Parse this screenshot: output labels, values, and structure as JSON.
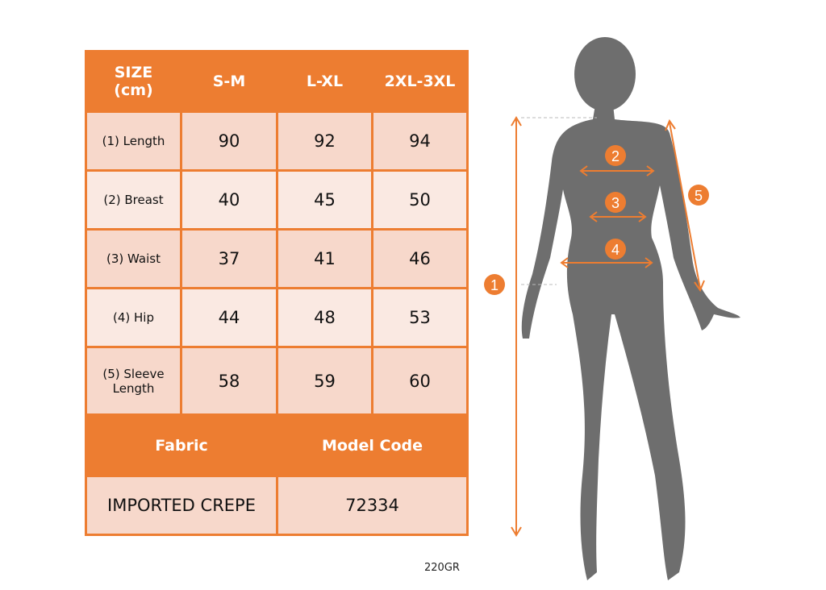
{
  "table": {
    "header": [
      "SIZE\n(cm)",
      "S-M",
      "L-XL",
      "2XL-3XL"
    ],
    "header_line1": "SIZE",
    "header_line2": "(cm)",
    "rows": [
      {
        "label": "(1) Length",
        "values": [
          "90",
          "92",
          "94"
        ]
      },
      {
        "label": "(2) Breast",
        "values": [
          "40",
          "45",
          "50"
        ]
      },
      {
        "label": "(3) Waist",
        "values": [
          "37",
          "41",
          "46"
        ]
      },
      {
        "label": "(4) Hip",
        "values": [
          "44",
          "48",
          "53"
        ]
      },
      {
        "label": "(5) Sleeve Length",
        "label_line1": "(5) Sleeve",
        "label_line2": "Length",
        "values": [
          "58",
          "59",
          "60"
        ]
      }
    ],
    "fabric_label": "Fabric",
    "model_code_label": "Model Code",
    "fabric_value": "IMPORTED CREPE",
    "model_code_value": "72334"
  },
  "weight": "220GR",
  "figure": {
    "markers": [
      "1",
      "2",
      "3",
      "4",
      "5"
    ]
  },
  "colors": {
    "accent": "#ED7D31",
    "cell_dark": "#F7D8CB",
    "cell_light": "#FAE9E2",
    "silhouette": "#6E6E6E"
  }
}
